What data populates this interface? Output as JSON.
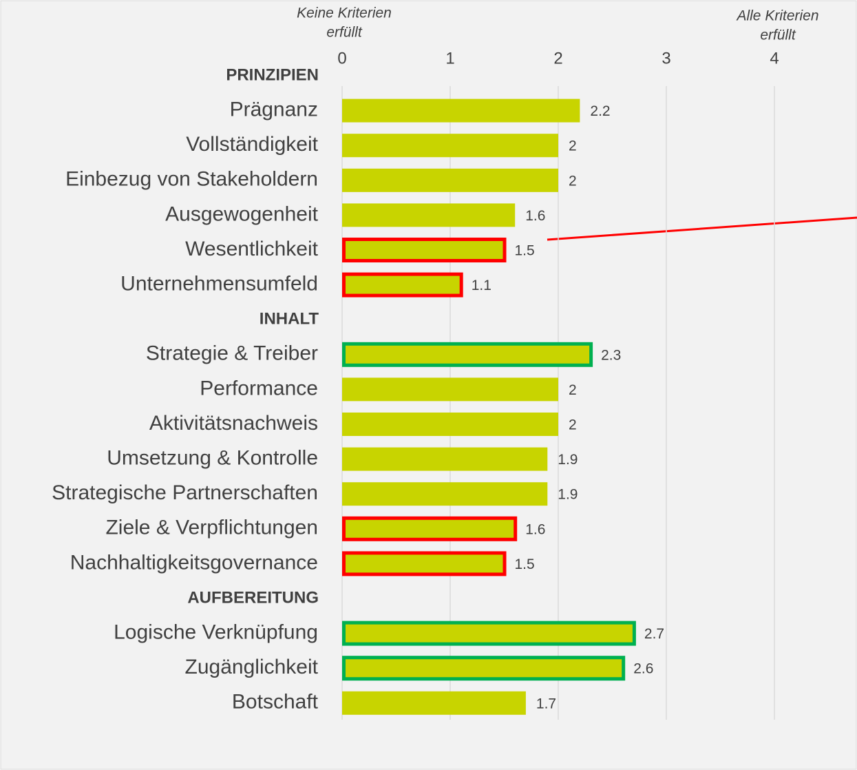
{
  "chart_data": {
    "type": "bar",
    "orientation": "horizontal",
    "color": "#c8d400",
    "xlim": [
      0,
      4
    ],
    "xticks": [
      0,
      1,
      2,
      3,
      4
    ],
    "grid": true,
    "axis_annotations": [
      {
        "x": 0,
        "lines": [
          "Keine Kriterien",
          "erfüllt"
        ]
      },
      {
        "x": 4,
        "lines": [
          "Alle Kriterien",
          "erfüllt"
        ]
      }
    ],
    "groups": [
      {
        "name": "PRINZIPIEN",
        "categories": [
          "Prägnanz",
          "Vollständigkeit",
          "Einbezug von Stakeholdern",
          "Ausgewogenheit",
          "Wesentlichkeit",
          "Unternehmensumfeld"
        ],
        "values": [
          2.2,
          2,
          2,
          1.6,
          1.5,
          1.1
        ],
        "outlines": [
          null,
          null,
          null,
          null,
          "#ff0000",
          "#ff0000"
        ]
      },
      {
        "name": "INHALT",
        "categories": [
          "Strategie & Treiber",
          "Performance",
          "Aktivitätsnachweis",
          "Umsetzung & Kontrolle",
          "Strategische Partnerschaften",
          "Ziele & Verpflichtungen",
          "Nachhaltigkeitsgovernance"
        ],
        "values": [
          2.3,
          2,
          2,
          1.9,
          1.9,
          1.6,
          1.5
        ],
        "outlines": [
          "#00b050",
          null,
          null,
          null,
          null,
          "#ff0000",
          "#ff0000"
        ]
      },
      {
        "name": "AUFBEREITUNG",
        "categories": [
          "Logische Verknüpfung",
          "Zugänglichkeit",
          "Botschaft"
        ],
        "values": [
          2.7,
          2.6,
          1.7
        ],
        "outlines": [
          "#00b050",
          "#00b050",
          null
        ]
      }
    ]
  }
}
